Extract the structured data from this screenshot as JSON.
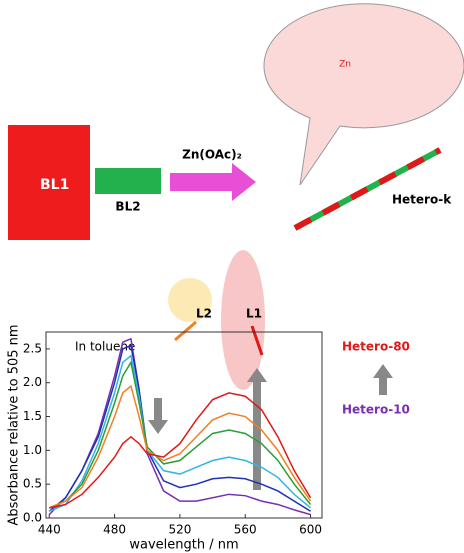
{
  "scheme": {
    "bl1": "BL1",
    "bl2": "BL2",
    "reagent": "Zn(OAc)₂",
    "product": "Hetero-k",
    "metal": "Zn"
  },
  "chart_data": {
    "type": "line",
    "y_label": "Absorbance relative to 505 nm",
    "x_label": "wavelength / nm",
    "annotations": {
      "solvent": "In toluene",
      "l2": "L2",
      "l1": "L1",
      "top": "Hetero-80",
      "bottom": "Hetero-10"
    },
    "x": [
      440,
      450,
      460,
      470,
      480,
      485,
      490,
      495,
      500,
      510,
      520,
      530,
      540,
      550,
      560,
      570,
      580,
      590,
      600
    ],
    "series": [
      {
        "color": "#7a2fb0",
        "values": [
          0.05,
          0.3,
          0.7,
          1.25,
          2.1,
          2.6,
          2.65,
          1.9,
          0.95,
          0.4,
          0.25,
          0.25,
          0.3,
          0.35,
          0.33,
          0.25,
          0.2,
          0.12,
          0.05
        ]
      },
      {
        "color": "#1f2fb8",
        "values": [
          0.1,
          0.3,
          0.7,
          1.2,
          2.0,
          2.5,
          2.55,
          1.9,
          1.0,
          0.55,
          0.45,
          0.5,
          0.58,
          0.6,
          0.58,
          0.5,
          0.4,
          0.25,
          0.1
        ]
      },
      {
        "color": "#33b5e5",
        "values": [
          0.1,
          0.2,
          0.55,
          1.1,
          1.85,
          2.3,
          2.4,
          1.8,
          1.0,
          0.7,
          0.65,
          0.75,
          0.85,
          0.9,
          0.85,
          0.75,
          0.6,
          0.35,
          0.15
        ]
      },
      {
        "color": "#2a9e3a",
        "values": [
          0.15,
          0.25,
          0.5,
          1.0,
          1.7,
          2.1,
          2.3,
          1.7,
          1.05,
          0.8,
          0.85,
          1.05,
          1.25,
          1.3,
          1.25,
          1.1,
          0.85,
          0.5,
          0.2
        ]
      },
      {
        "color": "#f08020",
        "values": [
          0.15,
          0.25,
          0.45,
          0.9,
          1.5,
          1.85,
          1.95,
          1.5,
          1.0,
          0.85,
          0.95,
          1.2,
          1.45,
          1.55,
          1.5,
          1.3,
          1.0,
          0.6,
          0.25
        ]
      },
      {
        "color": "#e01818",
        "values": [
          0.15,
          0.2,
          0.35,
          0.6,
          0.9,
          1.1,
          1.2,
          1.1,
          0.95,
          0.9,
          1.1,
          1.45,
          1.75,
          1.85,
          1.8,
          1.6,
          1.2,
          0.7,
          0.3
        ]
      }
    ],
    "xlim": [
      438,
      607
    ],
    "ylim": [
      0,
      2.75
    ],
    "xticks": [
      440,
      480,
      520,
      560,
      600
    ],
    "yticks": [
      {
        "value": 0,
        "label": "0.0"
      },
      {
        "value": 0.5,
        "label": "0.5"
      },
      {
        "value": 1,
        "label": "1.0"
      },
      {
        "value": 1.5,
        "label": "1.5"
      },
      {
        "value": 2,
        "label": "2.0"
      },
      {
        "value": 2.5,
        "label": "2.5"
      }
    ]
  }
}
